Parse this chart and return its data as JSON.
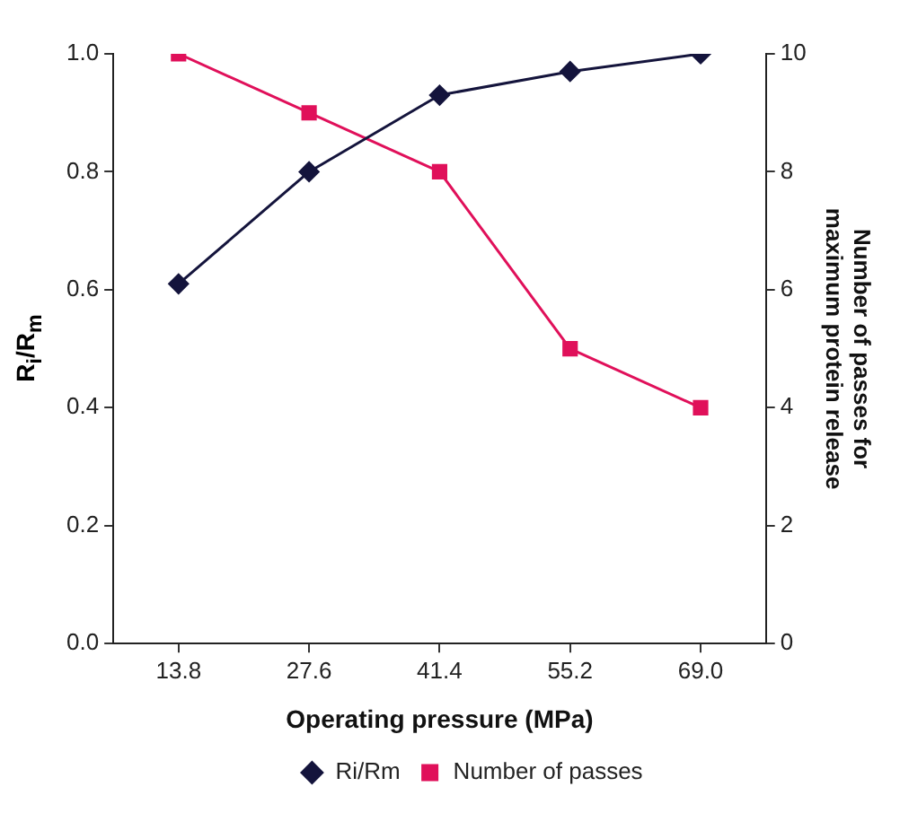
{
  "chart_data": {
    "type": "line",
    "xlabel": "Operating pressure (MPa)",
    "ylabel": "R$_{i}$/R$_{m}$",
    "y2label": "Number of passes for maximum protein release",
    "categories": [
      "13.8",
      "27.6",
      "41.4",
      "55.2",
      "69.0"
    ],
    "series": [
      {
        "name": "Ri/Rm",
        "color": "#14143c",
        "marker": "diamond",
        "values": [
          0.61,
          0.8,
          0.93,
          0.97,
          1.0
        ]
      },
      {
        "name": "Number of passes",
        "color": "#e0105a",
        "marker": "square",
        "axis": "y2",
        "values": [
          10,
          9,
          8,
          5,
          4
        ]
      }
    ],
    "ylim": [
      0,
      1
    ],
    "yticks": [
      {
        "value": 0,
        "label": "0.0"
      },
      {
        "value": 0.2,
        "label": "0.2"
      },
      {
        "value": 0.4,
        "label": "0.4"
      },
      {
        "value": 0.6,
        "label": "0.6"
      },
      {
        "value": 0.8,
        "label": "0.8"
      },
      {
        "value": 1,
        "label": "1.0"
      }
    ],
    "y2lim": [
      0,
      10
    ],
    "y2ticks": [
      0,
      2,
      4,
      6,
      8,
      10
    ],
    "grid": false,
    "legend": "bottom"
  }
}
